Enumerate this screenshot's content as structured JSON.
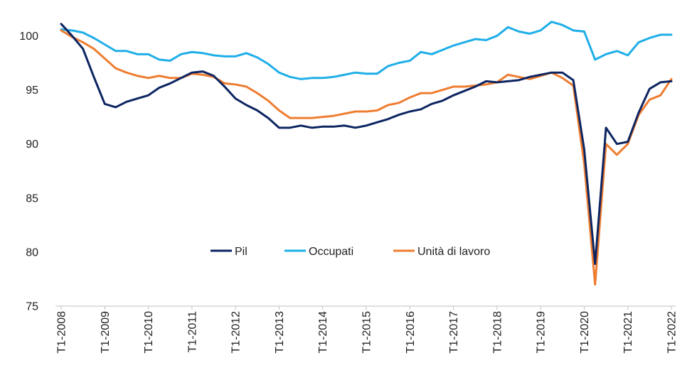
{
  "chart_data": {
    "type": "line",
    "ylim": [
      75,
      102
    ],
    "yticks": [
      75,
      80,
      85,
      90,
      95,
      100
    ],
    "grid": false,
    "legend_position": "center",
    "x": [
      "T1-2008",
      "T2-2008",
      "T3-2008",
      "T4-2008",
      "T1-2009",
      "T2-2009",
      "T3-2009",
      "T4-2009",
      "T1-2010",
      "T2-2010",
      "T3-2010",
      "T4-2010",
      "T1-2011",
      "T2-2011",
      "T3-2011",
      "T4-2011",
      "T1-2012",
      "T2-2012",
      "T3-2012",
      "T4-2012",
      "T1-2013",
      "T2-2013",
      "T3-2013",
      "T4-2013",
      "T1-2014",
      "T2-2014",
      "T3-2014",
      "T4-2014",
      "T1-2015",
      "T2-2015",
      "T3-2015",
      "T4-2015",
      "T1-2016",
      "T2-2016",
      "T3-2016",
      "T4-2016",
      "T1-2017",
      "T2-2017",
      "T3-2017",
      "T4-2017",
      "T1-2018",
      "T2-2018",
      "T3-2018",
      "T4-2018",
      "T1-2019",
      "T2-2019",
      "T3-2019",
      "T4-2019",
      "T1-2020",
      "T2-2020",
      "T3-2020",
      "T4-2020",
      "T1-2021",
      "T2-2021",
      "T3-2021",
      "T4-2021",
      "T1-2022"
    ],
    "x_tick_labels": [
      "T1-2008",
      "T1-2009",
      "T1-2010",
      "T1-2011",
      "T1-2012",
      "T1-2013",
      "T1-2014",
      "T1-2015",
      "T1-2016",
      "T1-2017",
      "T1-2018",
      "T1-2019",
      "T1-2020",
      "T1-2021",
      "T1-2022"
    ],
    "series": [
      {
        "name": "Pil",
        "color": "#0c2461",
        "values": [
          101.1,
          100.0,
          98.8,
          96.2,
          93.7,
          93.4,
          93.9,
          94.2,
          94.5,
          95.2,
          95.6,
          96.1,
          96.6,
          96.7,
          96.3,
          95.3,
          94.2,
          93.6,
          93.1,
          92.4,
          91.5,
          91.5,
          91.7,
          91.5,
          91.6,
          91.6,
          91.7,
          91.5,
          91.7,
          92.0,
          92.3,
          92.7,
          93.0,
          93.2,
          93.7,
          94.0,
          94.5,
          94.9,
          95.3,
          95.8,
          95.7,
          95.8,
          95.9,
          96.2,
          96.4,
          96.6,
          96.6,
          95.9,
          89.5,
          78.9,
          91.5,
          90.0,
          90.2,
          92.9,
          95.1,
          95.7,
          95.8
        ]
      },
      {
        "name": "Occupati",
        "color": "#1eaee8",
        "values": [
          100.6,
          100.5,
          100.3,
          99.8,
          99.2,
          98.6,
          98.6,
          98.3,
          98.3,
          97.8,
          97.7,
          98.3,
          98.5,
          98.4,
          98.2,
          98.1,
          98.1,
          98.4,
          98.0,
          97.4,
          96.6,
          96.2,
          96.0,
          96.1,
          96.1,
          96.2,
          96.4,
          96.6,
          96.5,
          96.5,
          97.2,
          97.5,
          97.7,
          98.5,
          98.3,
          98.7,
          99.1,
          99.4,
          99.7,
          99.6,
          100.0,
          100.8,
          100.4,
          100.2,
          100.5,
          101.3,
          101.0,
          100.5,
          100.4,
          97.8,
          98.3,
          98.6,
          98.2,
          99.4,
          99.8,
          100.1,
          100.1
        ]
      },
      {
        "name": "Unità di lavoro",
        "color": "#ee7d31",
        "values": [
          100.5,
          99.9,
          99.4,
          98.8,
          97.9,
          97.0,
          96.6,
          96.3,
          96.1,
          96.3,
          96.1,
          96.1,
          96.5,
          96.4,
          96.2,
          95.6,
          95.5,
          95.3,
          94.7,
          94.0,
          93.1,
          92.4,
          92.4,
          92.4,
          92.5,
          92.6,
          92.8,
          93.0,
          93.0,
          93.1,
          93.6,
          93.8,
          94.3,
          94.7,
          94.7,
          95.0,
          95.3,
          95.3,
          95.4,
          95.5,
          95.7,
          96.4,
          96.2,
          96.0,
          96.3,
          96.6,
          96.1,
          95.4,
          88.2,
          77.0,
          90.0,
          89.0,
          90.0,
          92.7,
          94.1,
          94.5,
          96.0
        ]
      }
    ]
  }
}
